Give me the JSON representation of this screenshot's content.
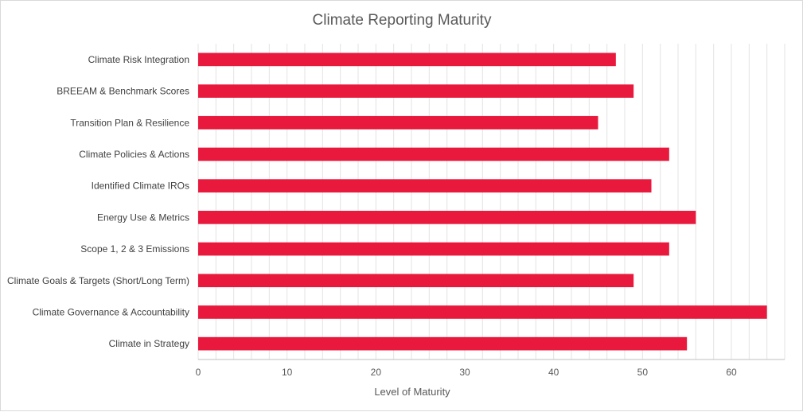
{
  "chart_data": {
    "type": "bar",
    "orientation": "horizontal",
    "title": "Climate Reporting Maturity",
    "xlabel": "Level of Maturity",
    "ylabel": "",
    "categories": [
      "Climate Risk Integration",
      "BREEAM & Benchmark Scores",
      "Transition Plan & Resilience",
      "Climate Policies & Actions",
      "Identified Climate IROs",
      "Energy Use & Metrics",
      "Scope 1, 2 & 3 Emissions",
      "Climate Goals & Targets (Short/Long Term)",
      "Climate Governance & Accountability",
      "Climate in Strategy"
    ],
    "values": [
      47,
      49,
      45,
      53,
      51,
      56,
      53,
      49,
      64,
      55
    ],
    "xlim": [
      0,
      66
    ],
    "xticks": [
      0,
      10,
      20,
      30,
      40,
      50,
      60
    ],
    "grid": "vertical",
    "legend": "none",
    "bar_color": "#e8193c",
    "grid_color": "#e3e3e3"
  }
}
